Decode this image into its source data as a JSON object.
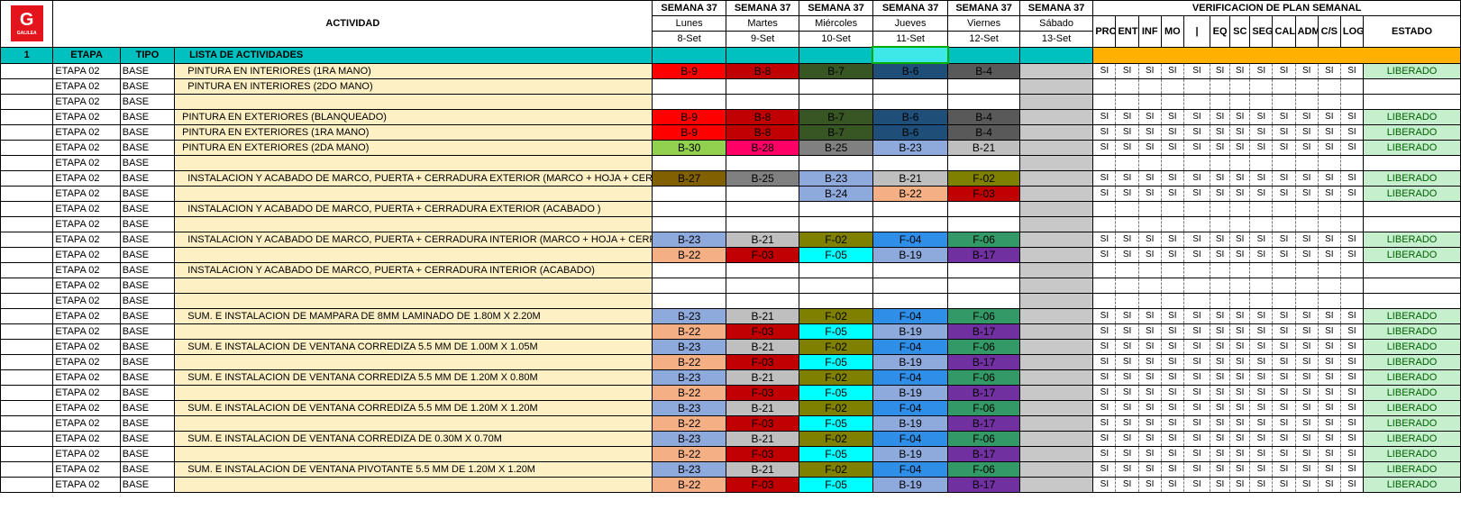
{
  "header": {
    "actividad": "ACTIVIDAD",
    "verificacion": "VERIFICACION DE PLAN SEMANAL",
    "estado": "ESTADO",
    "logo_letter": "G",
    "logo_text": "GALILEA"
  },
  "days": [
    {
      "week": "SEMANA 37",
      "day": "Lunes",
      "date": "8-Set"
    },
    {
      "week": "SEMANA 37",
      "day": "Martes",
      "date": "9-Set"
    },
    {
      "week": "SEMANA 37",
      "day": "Miércoles",
      "date": "10-Set"
    },
    {
      "week": "SEMANA 37",
      "day": "Jueves",
      "date": "11-Set"
    },
    {
      "week": "SEMANA 37",
      "day": "Viernes",
      "date": "12-Set"
    },
    {
      "week": "SEMANA 37",
      "day": "Sábado",
      "date": "13-Set"
    }
  ],
  "verif_cols": [
    "PRC",
    "ENT",
    "INF",
    "MO",
    "|",
    "EQ",
    "SC",
    "SEG",
    "CAL",
    "ADM",
    "C/S",
    "LOG"
  ],
  "subheader": {
    "num": "1",
    "etapa": "ETAPA",
    "tipo": "TIPO",
    "lista": "LISTA DE ACTIVIDADES"
  },
  "colors": {
    "teal": "#00c0c0",
    "orange": "#ffb000",
    "activity_bg": "#fdf0c4",
    "saturday": "#c8c8c8",
    "liberado_bg": "#c6efce",
    "liberado_fg": "#006100",
    "B-9": "#ff0000",
    "B-8": "#c00000",
    "B-7": "#375623",
    "B-6": "#1f4e78",
    "B-4": "#595959",
    "B-30": "#92d050",
    "B-28": "#ff0066",
    "B-25": "#808080",
    "B-23": "#8ea9db",
    "B-21": "#bfbfbf",
    "B-27": "#806000",
    "F-02": "#808000",
    "B-24": "#8ea9db",
    "B-22": "#f4b084",
    "F-03": "#c00000",
    "F-04": "#2f8ee8",
    "F-06": "#339966",
    "F-05": "#00ffff",
    "B-19": "#8ea9db",
    "B-17": "#7030a0"
  },
  "rows": [
    {
      "etapa": "ETAPA 02",
      "tipo": "BASE",
      "actividad": "  PINTURA EN INTERIORES (1RA MANO)",
      "cells": [
        "B-9",
        "B-8",
        "B-7",
        "B-6",
        "B-4"
      ],
      "estado": "LIBERADO"
    },
    {
      "etapa": "ETAPA 02",
      "tipo": "BASE",
      "actividad": "  PINTURA EN INTERIORES (2DO MANO)",
      "cells": [
        "",
        "",
        "",
        "",
        ""
      ],
      "estado": ""
    },
    {
      "etapa": "ETAPA 02",
      "tipo": "BASE",
      "actividad": "",
      "cells": [
        "",
        "",
        "",
        "",
        ""
      ],
      "estado": ""
    },
    {
      "etapa": "ETAPA 02",
      "tipo": "BASE",
      "actividad": "PINTURA EN EXTERIORES (BLANQUEADO)",
      "cells": [
        "B-9",
        "B-8",
        "B-7",
        "B-6",
        "B-4"
      ],
      "estado": "LIBERADO"
    },
    {
      "etapa": "ETAPA 02",
      "tipo": "BASE",
      "actividad": "PINTURA EN EXTERIORES (1RA MANO)",
      "cells": [
        "B-9",
        "B-8",
        "B-7",
        "B-6",
        "B-4"
      ],
      "estado": "LIBERADO"
    },
    {
      "etapa": "ETAPA 02",
      "tipo": "BASE",
      "actividad": "PINTURA EN EXTERIORES (2DA MANO)",
      "cells": [
        "B-30",
        "B-28",
        "B-25",
        "B-23",
        "B-21"
      ],
      "estado": "LIBERADO"
    },
    {
      "etapa": "ETAPA 02",
      "tipo": "BASE",
      "actividad": "",
      "cells": [
        "",
        "",
        "",
        "",
        ""
      ],
      "estado": ""
    },
    {
      "etapa": "ETAPA 02",
      "tipo": "BASE",
      "actividad": "  INSTALACION Y ACABADO DE MARCO, PUERTA + CERRADURA EXTERIOR (MARCO + HOJA + CERRADURA",
      "cells": [
        "B-27",
        "B-25",
        "B-23",
        "B-21",
        "F-02"
      ],
      "estado": "LIBERADO"
    },
    {
      "etapa": "ETAPA 02",
      "tipo": "BASE",
      "actividad": "",
      "cells": [
        "",
        "",
        "B-24",
        "B-22",
        "F-03"
      ],
      "estado": "LIBERADO"
    },
    {
      "etapa": "ETAPA 02",
      "tipo": "BASE",
      "actividad": "  INSTALACION Y ACABADO DE MARCO, PUERTA + CERRADURA EXTERIOR (ACABADO )",
      "cells": [
        "",
        "",
        "",
        "",
        ""
      ],
      "estado": ""
    },
    {
      "etapa": "ETAPA 02",
      "tipo": "BASE",
      "actividad": "",
      "cells": [
        "",
        "",
        "",
        "",
        ""
      ],
      "estado": ""
    },
    {
      "etapa": "ETAPA 02",
      "tipo": "BASE",
      "actividad": "  INSTALACION Y ACABADO DE MARCO, PUERTA + CERRADURA INTERIOR (MARCO + HOJA + CERRADURA",
      "cells": [
        "B-23",
        "B-21",
        "F-02",
        "F-04",
        "F-06"
      ],
      "estado": "LIBERADO"
    },
    {
      "etapa": "ETAPA 02",
      "tipo": "BASE",
      "actividad": "",
      "cells": [
        "B-22",
        "F-03",
        "F-05",
        "B-19",
        "B-17"
      ],
      "estado": "LIBERADO"
    },
    {
      "etapa": "ETAPA 02",
      "tipo": "BASE",
      "actividad": "  INSTALACION Y ACABADO DE MARCO, PUERTA + CERRADURA INTERIOR (ACABADO)",
      "cells": [
        "",
        "",
        "",
        "",
        ""
      ],
      "estado": ""
    },
    {
      "etapa": "ETAPA 02",
      "tipo": "BASE",
      "actividad": "",
      "cells": [
        "",
        "",
        "",
        "",
        ""
      ],
      "estado": ""
    },
    {
      "etapa": "ETAPA 02",
      "tipo": "BASE",
      "actividad": "",
      "cells": [
        "",
        "",
        "",
        "",
        ""
      ],
      "estado": ""
    },
    {
      "etapa": "ETAPA 02",
      "tipo": "BASE",
      "actividad": "  SUM. E INSTALACION DE MAMPARA DE 8MM LAMINADO DE 1.80M X 2.20M",
      "cells": [
        "B-23",
        "B-21",
        "F-02",
        "F-04",
        "F-06"
      ],
      "estado": "LIBERADO"
    },
    {
      "etapa": "ETAPA 02",
      "tipo": "BASE",
      "actividad": "",
      "cells": [
        "B-22",
        "F-03",
        "F-05",
        "B-19",
        "B-17"
      ],
      "estado": "LIBERADO"
    },
    {
      "etapa": "ETAPA 02",
      "tipo": "BASE",
      "actividad": "  SUM. E INSTALACION DE VENTANA CORREDIZA 5.5 MM DE 1.00M X 1.05M",
      "cells": [
        "B-23",
        "B-21",
        "F-02",
        "F-04",
        "F-06"
      ],
      "estado": "LIBERADO"
    },
    {
      "etapa": "ETAPA 02",
      "tipo": "BASE",
      "actividad": "",
      "cells": [
        "B-22",
        "F-03",
        "F-05",
        "B-19",
        "B-17"
      ],
      "estado": "LIBERADO"
    },
    {
      "etapa": "ETAPA 02",
      "tipo": "BASE",
      "actividad": "  SUM. E INSTALACION DE VENTANA CORREDIZA 5.5 MM DE 1.20M X 0.80M",
      "cells": [
        "B-23",
        "B-21",
        "F-02",
        "F-04",
        "F-06"
      ],
      "estado": "LIBERADO"
    },
    {
      "etapa": "ETAPA 02",
      "tipo": "BASE",
      "actividad": "",
      "cells": [
        "B-22",
        "F-03",
        "F-05",
        "B-19",
        "B-17"
      ],
      "estado": "LIBERADO"
    },
    {
      "etapa": "ETAPA 02",
      "tipo": "BASE",
      "actividad": "  SUM. E INSTALACION DE VENTANA CORREDIZA 5.5 MM DE 1.20M X 1.20M",
      "cells": [
        "B-23",
        "B-21",
        "F-02",
        "F-04",
        "F-06"
      ],
      "estado": "LIBERADO"
    },
    {
      "etapa": "ETAPA 02",
      "tipo": "BASE",
      "actividad": "",
      "cells": [
        "B-22",
        "F-03",
        "F-05",
        "B-19",
        "B-17"
      ],
      "estado": "LIBERADO"
    },
    {
      "etapa": "ETAPA 02",
      "tipo": "BASE",
      "actividad": "  SUM. E INSTALACION DE VENTANA CORREDIZA DE 0.30M X 0.70M",
      "cells": [
        "B-23",
        "B-21",
        "F-02",
        "F-04",
        "F-06"
      ],
      "estado": "LIBERADO"
    },
    {
      "etapa": "ETAPA 02",
      "tipo": "BASE",
      "actividad": "",
      "cells": [
        "B-22",
        "F-03",
        "F-05",
        "B-19",
        "B-17"
      ],
      "estado": "LIBERADO"
    },
    {
      "etapa": "ETAPA 02",
      "tipo": "BASE",
      "actividad": "  SUM. E INSTALACION DE VENTANA PIVOTANTE 5.5 MM DE 1.20M X 1.20M",
      "cells": [
        "B-23",
        "B-21",
        "F-02",
        "F-04",
        "F-06"
      ],
      "estado": "LIBERADO"
    },
    {
      "etapa": "ETAPA 02",
      "tipo": "BASE",
      "actividad": "",
      "cells": [
        "B-22",
        "F-03",
        "F-05",
        "B-19",
        "B-17"
      ],
      "estado": "LIBERADO"
    }
  ],
  "si_label": "SI"
}
